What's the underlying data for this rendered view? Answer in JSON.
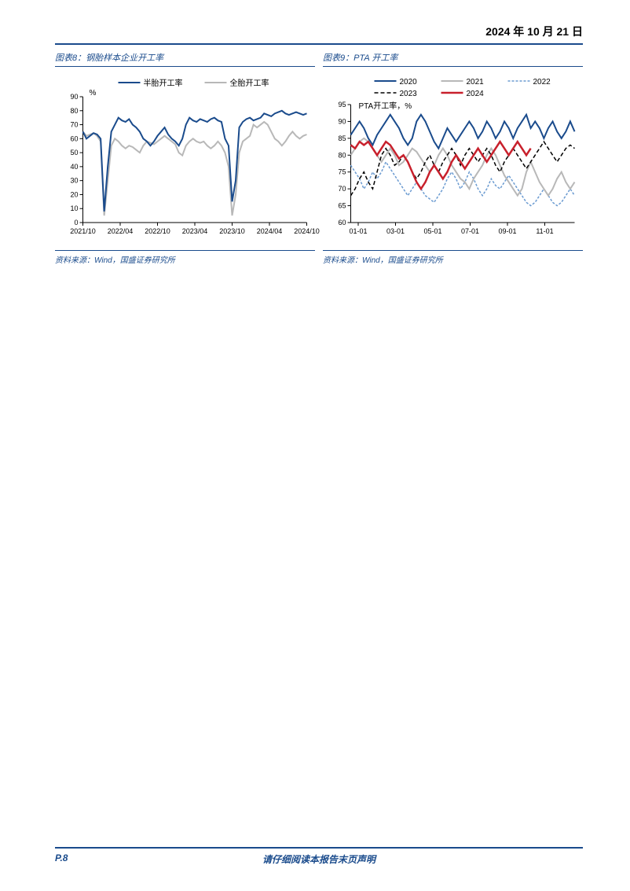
{
  "header": {
    "date": "2024 年 10 月 21 日"
  },
  "footer": {
    "pagenum": "P.8",
    "disclaimer": "请仔细阅读本报告末页声明"
  },
  "chart8": {
    "type": "line",
    "title": "图表8：钢胎样本企业开工率",
    "source": "资料来源：Wind，国盛证券研究所",
    "ylabel": "%",
    "ylim": [
      0,
      90
    ],
    "ytick_step": 10,
    "yticks": [
      0,
      10,
      20,
      30,
      40,
      50,
      60,
      70,
      80,
      90
    ],
    "xticks": [
      "2021/10",
      "2022/04",
      "2022/10",
      "2023/04",
      "2023/10",
      "2024/04",
      "2024/10"
    ],
    "background_color": "#ffffff",
    "axis_color": "#000000",
    "tick_fontsize": 9,
    "label_fontsize": 10,
    "legend_fontsize": 10,
    "legend": [
      {
        "label": "半胎开工率",
        "color": "#1a4b8c",
        "width": 2
      },
      {
        "label": "全胎开工率",
        "color": "#b8b8b8",
        "width": 2
      }
    ],
    "series": {
      "half": {
        "color": "#1a4b8c",
        "width": 2,
        "values": [
          65,
          60,
          62,
          64,
          63,
          60,
          8,
          40,
          65,
          70,
          75,
          73,
          72,
          74,
          70,
          68,
          65,
          60,
          58,
          55,
          58,
          62,
          65,
          68,
          63,
          60,
          58,
          55,
          60,
          70,
          75,
          73,
          72,
          74,
          73,
          72,
          74,
          75,
          73,
          72,
          60,
          55,
          15,
          30,
          68,
          72,
          74,
          75,
          73,
          74,
          75,
          78,
          77,
          76,
          78,
          79,
          80,
          78,
          77,
          78,
          79,
          78,
          77,
          78
        ]
      },
      "full": {
        "color": "#b8b8b8",
        "width": 2,
        "values": [
          65,
          62,
          63,
          64,
          62,
          58,
          5,
          30,
          55,
          60,
          58,
          55,
          53,
          55,
          54,
          52,
          50,
          55,
          58,
          57,
          56,
          58,
          60,
          62,
          60,
          58,
          56,
          50,
          48,
          55,
          58,
          60,
          58,
          57,
          58,
          55,
          53,
          55,
          58,
          55,
          50,
          40,
          5,
          20,
          50,
          58,
          60,
          62,
          70,
          68,
          70,
          72,
          70,
          65,
          60,
          58,
          55,
          58,
          62,
          65,
          62,
          60,
          62,
          63
        ]
      }
    }
  },
  "chart9": {
    "type": "line",
    "title": "图表9：PTA 开工率",
    "source": "资料来源：Wind，国盛证券研究所",
    "ylabel": "PTA开工率，%",
    "ylim": [
      60,
      95
    ],
    "ytick_step": 5,
    "yticks": [
      60,
      65,
      70,
      75,
      80,
      85,
      90,
      95
    ],
    "xticks": [
      "01-01",
      "03-01",
      "05-01",
      "07-01",
      "09-01",
      "11-01"
    ],
    "background_color": "#ffffff",
    "axis_color": "#000000",
    "tick_fontsize": 9,
    "label_fontsize": 10,
    "legend_fontsize": 10,
    "legend": [
      {
        "label": "2020",
        "color": "#1a4b8c",
        "width": 2,
        "dash": "none"
      },
      {
        "label": "2021",
        "color": "#b8b8b8",
        "width": 2,
        "dash": "none"
      },
      {
        "label": "2022",
        "color": "#6b9bd1",
        "width": 1.5,
        "dash": "3,2"
      },
      {
        "label": "2023",
        "color": "#000000",
        "width": 1.5,
        "dash": "5,3"
      },
      {
        "label": "2024",
        "color": "#c8202c",
        "width": 2.5,
        "dash": "none"
      }
    ],
    "series": {
      "y2020": {
        "color": "#1a4b8c",
        "width": 2,
        "dash": "none",
        "values": [
          86,
          88,
          90,
          88,
          85,
          83,
          86,
          88,
          90,
          92,
          90,
          88,
          85,
          83,
          85,
          90,
          92,
          90,
          87,
          84,
          82,
          85,
          88,
          86,
          84,
          86,
          88,
          90,
          88,
          85,
          87,
          90,
          88,
          85,
          87,
          90,
          88,
          85,
          88,
          90,
          92,
          88,
          90,
          88,
          85,
          88,
          90,
          87,
          85,
          87,
          90,
          87
        ]
      },
      "y2021": {
        "color": "#b8b8b8",
        "width": 2,
        "dash": "none",
        "values": [
          80,
          82,
          84,
          85,
          84,
          82,
          80,
          78,
          80,
          82,
          80,
          77,
          78,
          80,
          82,
          81,
          79,
          77,
          75,
          77,
          80,
          82,
          80,
          77,
          75,
          73,
          72,
          70,
          73,
          75,
          77,
          80,
          82,
          80,
          77,
          74,
          72,
          70,
          68,
          70,
          75,
          78,
          75,
          72,
          70,
          68,
          70,
          73,
          75,
          72,
          70,
          72
        ]
      },
      "y2022": {
        "color": "#6b9bd1",
        "width": 1.5,
        "dash": "3,2",
        "values": [
          77,
          75,
          73,
          70,
          72,
          75,
          73,
          75,
          78,
          76,
          74,
          72,
          70,
          68,
          70,
          72,
          70,
          68,
          67,
          66,
          68,
          70,
          73,
          75,
          73,
          70,
          72,
          75,
          73,
          70,
          68,
          70,
          73,
          71,
          70,
          72,
          74,
          72,
          70,
          68,
          66,
          65,
          66,
          68,
          70,
          68,
          66,
          65,
          66,
          68,
          70,
          68
        ]
      },
      "y2023": {
        "color": "#000000",
        "width": 1.5,
        "dash": "5,3",
        "values": [
          68,
          70,
          73,
          75,
          72,
          70,
          75,
          80,
          82,
          80,
          77,
          78,
          80,
          78,
          75,
          73,
          75,
          78,
          80,
          77,
          75,
          78,
          80,
          82,
          80,
          77,
          80,
          82,
          80,
          78,
          80,
          82,
          80,
          77,
          75,
          78,
          80,
          82,
          80,
          78,
          76,
          78,
          80,
          82,
          84,
          82,
          80,
          78,
          80,
          82,
          83,
          82
        ]
      },
      "y2024": {
        "color": "#c8202c",
        "width": 2.5,
        "dash": "none",
        "values": [
          83,
          82,
          84,
          83,
          84,
          82,
          80,
          82,
          84,
          83,
          81,
          79,
          80,
          78,
          75,
          72,
          70,
          72,
          75,
          77,
          75,
          73,
          75,
          78,
          80,
          78,
          76,
          78,
          80,
          82,
          80,
          78,
          80,
          82,
          84,
          82,
          80,
          82,
          84,
          82,
          80,
          82
        ]
      }
    }
  }
}
